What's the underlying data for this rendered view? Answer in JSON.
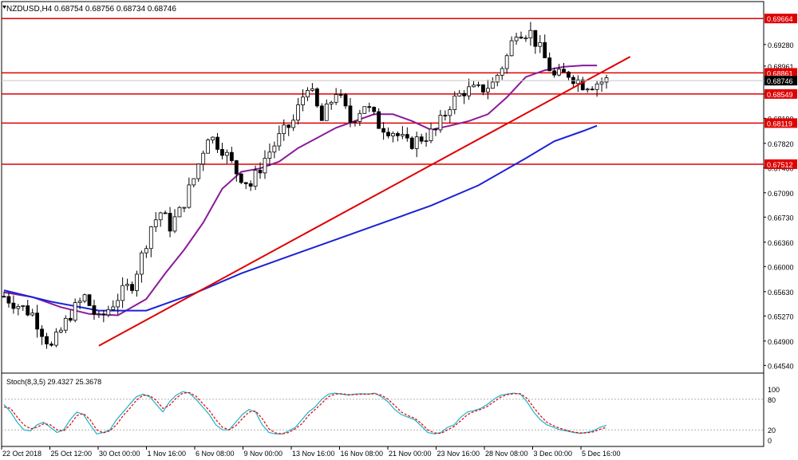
{
  "header": {
    "symbol_line": "NZDUSD,H4  0.68754 0.68756 0.68734 0.68746"
  },
  "stoch_header": "Stoch(8,3,5) 29.4327 25.3678",
  "colors": {
    "bull_body": "#ffffff",
    "bear_body": "#000000",
    "wick": "#000000",
    "ma_fast": "#8b1a9a",
    "ma_slow": "#1c22d6",
    "level_line": "#e00000",
    "trend_line": "#e00000",
    "stoch_main": "#20b2c8",
    "stoch_signal": "#e00000",
    "price_tag_bg": "#e00000",
    "current_tag_bg": "#000000"
  },
  "chart_data": {
    "type": "candlestick",
    "title": "NZDUSD,H4",
    "current_price": "0.68746",
    "ylim": [
      0.6445,
      0.6989
    ],
    "y_ticks": [
      "0.69280",
      "0.68961",
      "0.68549",
      "0.68190",
      "0.67820",
      "0.67460",
      "0.67090",
      "0.66730",
      "0.66360",
      "0.66000",
      "0.65630",
      "0.65270",
      "0.64900",
      "0.64540"
    ],
    "x_ticks": [
      "22 Oct 2018",
      "25 Oct 12:00",
      "30 Oct 00:00",
      "1 Nov 16:00",
      "6 Nov 08:00",
      "9 Nov 00:00",
      "13 Nov 16:00",
      "16 Nov 08:00",
      "21 Nov 00:00",
      "23 Nov 16:00",
      "28 Nov 08:00",
      "3 Dec 00:00",
      "5 Dec 16:00"
    ],
    "horizontal_levels": [
      {
        "value": 0.69664,
        "label": "0.69664"
      },
      {
        "value": 0.68861,
        "label": "0.68861"
      },
      {
        "value": 0.68549,
        "label": "0.68549"
      },
      {
        "value": 0.68119,
        "label": "0.68119"
      },
      {
        "value": 0.67512,
        "label": "0.67512"
      }
    ],
    "trendline": {
      "start": [
        20,
        0.6483
      ],
      "end": [
        132,
        0.691
      ]
    },
    "close_path": {
      "bar_index": [
        0,
        6,
        10,
        14,
        17,
        20,
        24,
        27,
        29,
        31,
        33,
        35,
        37,
        40,
        43,
        46,
        49,
        52,
        55,
        58,
        61,
        64,
        67,
        70,
        73,
        76,
        79,
        82,
        85,
        88,
        91,
        94,
        97,
        100,
        103,
        106,
        108,
        111,
        113,
        116,
        119,
        122,
        124,
        127
      ],
      "close": [
        0.6556,
        0.653,
        0.648,
        0.653,
        0.6555,
        0.652,
        0.6555,
        0.6575,
        0.6615,
        0.666,
        0.668,
        0.666,
        0.668,
        0.673,
        0.6795,
        0.6775,
        0.674,
        0.672,
        0.676,
        0.679,
        0.6815,
        0.687,
        0.6815,
        0.686,
        0.6815,
        0.684,
        0.681,
        0.68,
        0.678,
        0.679,
        0.68,
        0.684,
        0.686,
        0.686,
        0.687,
        0.691,
        0.695,
        0.6945,
        0.692,
        0.688,
        0.6885,
        0.687,
        0.687,
        0.6875
      ]
    },
    "ma_fast": {
      "bar_index": [
        0,
        6,
        12,
        18,
        24,
        30,
        34,
        38,
        42,
        46,
        50,
        54,
        58,
        62,
        66,
        70,
        74,
        78,
        82,
        86,
        90,
        94,
        98,
        102,
        106,
        110,
        114,
        118,
        122,
        125
      ],
      "value": [
        0.6562,
        0.6555,
        0.654,
        0.653,
        0.6528,
        0.6552,
        0.659,
        0.6625,
        0.6665,
        0.6715,
        0.674,
        0.6745,
        0.6755,
        0.6775,
        0.679,
        0.6805,
        0.6815,
        0.6825,
        0.6825,
        0.6815,
        0.6802,
        0.6808,
        0.6815,
        0.6825,
        0.685,
        0.688,
        0.689,
        0.6895,
        0.6897,
        0.6897
      ]
    },
    "ma_slow": {
      "bar_index": [
        0,
        10,
        20,
        30,
        40,
        50,
        60,
        70,
        80,
        90,
        100,
        110,
        116,
        122,
        125
      ],
      "value": [
        0.6565,
        0.6548,
        0.6535,
        0.6535,
        0.656,
        0.659,
        0.6615,
        0.664,
        0.6665,
        0.669,
        0.672,
        0.676,
        0.6785,
        0.68,
        0.6808
      ]
    },
    "stochastic": {
      "label": "Stoch(8,3,5)",
      "main_value": 29.4327,
      "signal_value": 25.3678,
      "levels": [
        80,
        20
      ],
      "y_ticks": [
        "100",
        "80",
        "20",
        "0"
      ],
      "main": [
        70,
        55,
        35,
        20,
        18,
        30,
        35,
        25,
        15,
        20,
        40,
        55,
        50,
        30,
        12,
        15,
        20,
        40,
        55,
        70,
        85,
        90,
        85,
        70,
        55,
        75,
        88,
        95,
        92,
        80,
        65,
        50,
        30,
        20,
        20,
        35,
        50,
        60,
        55,
        30,
        15,
        12,
        12,
        18,
        25,
        40,
        55,
        65,
        80,
        90,
        92,
        90,
        88,
        90,
        91,
        90,
        92,
        85,
        75,
        60,
        50,
        45,
        40,
        28,
        15,
        12,
        15,
        25,
        30,
        45,
        55,
        58,
        62,
        70,
        80,
        88,
        90,
        92,
        90,
        75,
        55,
        40,
        30,
        25,
        20,
        18,
        15,
        13,
        15,
        18,
        25,
        29
      ],
      "signal": [
        65,
        62,
        45,
        30,
        22,
        25,
        32,
        30,
        20,
        18,
        30,
        48,
        52,
        40,
        20,
        14,
        18,
        30,
        48,
        62,
        78,
        88,
        87,
        78,
        62,
        68,
        82,
        92,
        93,
        86,
        72,
        58,
        40,
        25,
        20,
        28,
        42,
        55,
        57,
        42,
        22,
        14,
        12,
        15,
        22,
        32,
        48,
        60,
        72,
        85,
        90,
        91,
        89,
        89,
        90,
        90,
        91,
        88,
        80,
        68,
        55,
        48,
        43,
        33,
        20,
        14,
        13,
        20,
        27,
        38,
        50,
        56,
        60,
        66,
        75,
        84,
        89,
        91,
        91,
        82,
        64,
        48,
        35,
        28,
        23,
        19,
        16,
        14,
        14,
        16,
        21,
        25
      ]
    }
  }
}
